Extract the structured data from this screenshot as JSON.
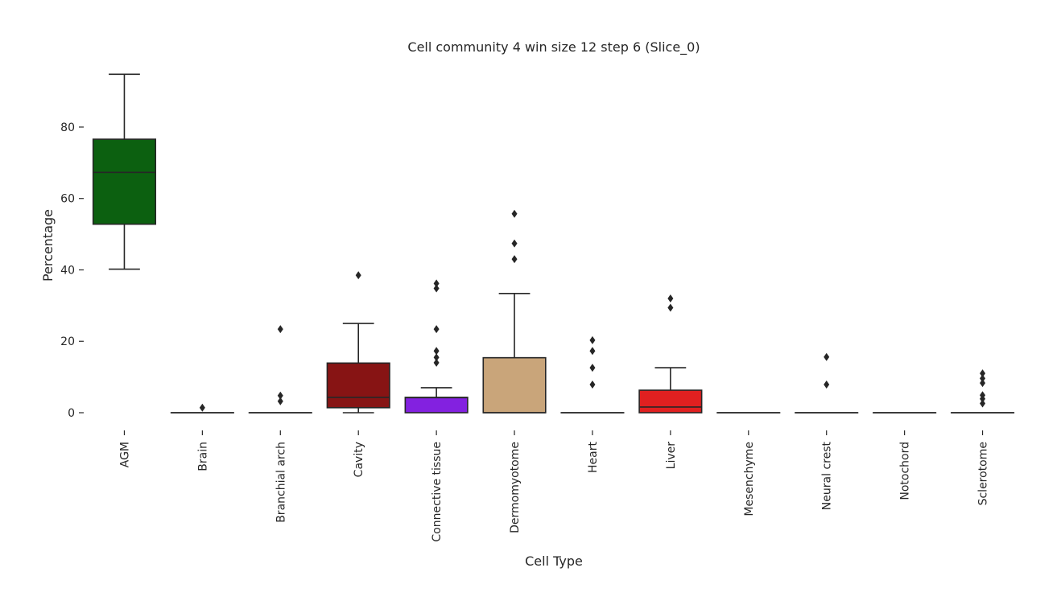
{
  "chart_data": {
    "type": "box",
    "title": "Cell community 4 win size 12 step 6 (Slice_0)",
    "xlabel": "Cell Type",
    "ylabel": "Percentage",
    "ylim": [
      -5,
      100
    ],
    "yticks": [
      0,
      20,
      40,
      60,
      80
    ],
    "grid": false,
    "categories": [
      "AGM",
      "Brain",
      "Branchial arch",
      "Cavity",
      "Connective tissue",
      "Dermomyotome",
      "Heart",
      "Liver",
      "Mesenchyme",
      "Neural crest",
      "Notochord",
      "Sclerotome"
    ],
    "colors": [
      "#0c6010",
      "#cc5a23",
      "#8b1a5c",
      "#871414",
      "#8321e0",
      "#c9a57a",
      "#2a8a8a",
      "#e02020",
      "#f4e41a",
      "#3b59c4",
      "#c9a38a",
      "#76c6c0"
    ],
    "boxes": [
      {
        "min": 40.2,
        "q1": 52.8,
        "median": 67.3,
        "q3": 76.6,
        "max": 94.8,
        "outliers": []
      },
      {
        "min": 0,
        "q1": 0,
        "median": 0,
        "q3": 0,
        "max": 0,
        "outliers": [
          1.4
        ]
      },
      {
        "min": 0,
        "q1": 0,
        "median": 0,
        "q3": 0,
        "max": 0,
        "outliers": [
          23.4,
          4.8,
          3.2
        ]
      },
      {
        "min": 0,
        "q1": 1.4,
        "median": 4.3,
        "q3": 13.9,
        "max": 25.0,
        "outliers": [
          38.5
        ]
      },
      {
        "min": 0,
        "q1": 0,
        "median": 4.2,
        "q3": 4.3,
        "max": 7.0,
        "outliers": [
          36.2,
          34.8,
          23.4,
          17.3,
          15.5,
          14.0
        ]
      },
      {
        "min": 0,
        "q1": 0,
        "median": 0,
        "q3": 15.4,
        "max": 33.4,
        "outliers": [
          55.7,
          47.4,
          43.0
        ]
      },
      {
        "min": 0,
        "q1": 0,
        "median": 0,
        "q3": 0,
        "max": 0,
        "outliers": [
          20.3,
          17.3,
          12.6,
          7.9
        ]
      },
      {
        "min": 0,
        "q1": 0,
        "median": 1.6,
        "q3": 6.3,
        "max": 12.6,
        "outliers": [
          32.0,
          29.4
        ]
      },
      {
        "min": 0,
        "q1": 0,
        "median": 0,
        "q3": 0,
        "max": 0,
        "outliers": []
      },
      {
        "min": 0,
        "q1": 0,
        "median": 0,
        "q3": 0,
        "max": 0,
        "outliers": [
          15.6,
          7.9
        ]
      },
      {
        "min": 0,
        "q1": 0,
        "median": 0,
        "q3": 0,
        "max": 0,
        "outliers": []
      },
      {
        "min": 0,
        "q1": 0,
        "median": 0,
        "q3": 0,
        "max": 0,
        "outliers": [
          11.0,
          9.6,
          8.3,
          4.9,
          3.9,
          2.6
        ]
      }
    ]
  }
}
